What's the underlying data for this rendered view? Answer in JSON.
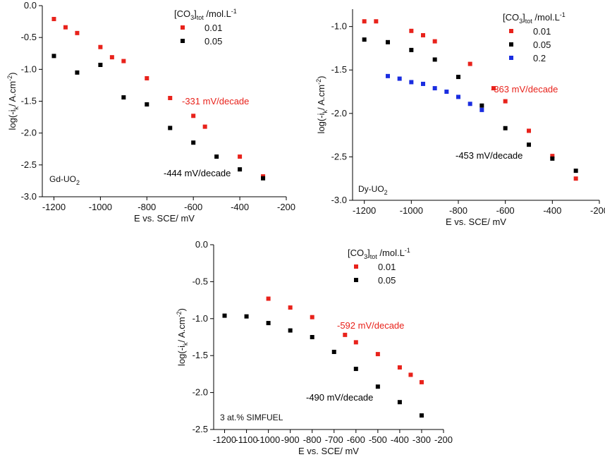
{
  "chart_data": [
    {
      "type": "scatter",
      "panel": "Gd-UO2",
      "panel_label": "Gd-UO",
      "panel_label_sub": "2",
      "xlabel": "E vs. SCE/ mV",
      "ylabel": "log(-i_k/ A.cm^-2)",
      "xlim": [
        -1250,
        -200
      ],
      "ylim": [
        -3.0,
        0.0
      ],
      "xticks": [
        -1200,
        -1000,
        -800,
        -600,
        -400,
        -200
      ],
      "yticks": [
        0.0,
        -0.5,
        -1.0,
        -1.5,
        -2.0,
        -2.5,
        -3.0
      ],
      "xtick_labels": [
        "-1200",
        "-1000",
        "-800",
        "-600",
        "-400",
        "-200"
      ],
      "ytick_labels": [
        "0.0",
        "-0.5",
        "-1.0",
        "-1.5",
        "-2.0",
        "-2.5",
        "-3.0"
      ],
      "legend_title": "[CO3]tot /mol.L-1",
      "series": [
        {
          "name": "0.01",
          "color": "#e8221b",
          "x": [
            -1200,
            -1150,
            -1100,
            -1000,
            -950,
            -900,
            -800,
            -700,
            -600,
            -550,
            -400,
            -300
          ],
          "y": [
            -0.21,
            -0.34,
            -0.43,
            -0.65,
            -0.81,
            -0.87,
            -1.14,
            -1.45,
            -1.73,
            -1.9,
            -2.37,
            -2.68
          ]
        },
        {
          "name": "0.05",
          "color": "#000000",
          "x": [
            -1200,
            -1100,
            -1000,
            -900,
            -800,
            -700,
            -600,
            -500,
            -400,
            -300
          ],
          "y": [
            -0.79,
            -1.05,
            -0.93,
            -1.44,
            -1.55,
            -1.92,
            -2.15,
            -2.37,
            -2.57,
            -2.71
          ]
        }
      ],
      "annotations": [
        {
          "text": "-331 mV/decade",
          "color": "#e8221b"
        },
        {
          "text": "-444 mV/decade",
          "color": "#000000"
        }
      ]
    },
    {
      "type": "scatter",
      "panel": "Dy-UO2",
      "panel_label": "Dy-UO",
      "panel_label_sub": "2",
      "xlabel": "E vs. SCE/ mV",
      "ylabel": "log(-i_k/ A.cm^-2)",
      "xlim": [
        -1250,
        -200
      ],
      "ylim": [
        -3.0,
        -0.8
      ],
      "xticks": [
        -1200,
        -1000,
        -800,
        -600,
        -400,
        -200
      ],
      "yticks": [
        -1.0,
        -1.5,
        -2.0,
        -2.5,
        -3.0
      ],
      "xtick_labels": [
        "-1200",
        "-1000",
        "-800",
        "-600",
        "-400",
        "-200"
      ],
      "ytick_labels": [
        "-1.0",
        "-1.5",
        "-2.0",
        "-2.5",
        "-3.0"
      ],
      "legend_title": "[CO3]tot /mol.L-1",
      "series": [
        {
          "name": "0.01",
          "color": "#e8221b",
          "x": [
            -1200,
            -1150,
            -1000,
            -950,
            -900,
            -750,
            -650,
            -600,
            -500,
            -400,
            -300
          ],
          "y": [
            -0.94,
            -0.94,
            -1.05,
            -1.1,
            -1.17,
            -1.43,
            -1.71,
            -1.86,
            -2.2,
            -2.49,
            -2.75
          ]
        },
        {
          "name": "0.05",
          "color": "#000000",
          "x": [
            -1200,
            -1100,
            -1000,
            -900,
            -800,
            -700,
            -600,
            -500,
            -400,
            -300
          ],
          "y": [
            -1.15,
            -1.18,
            -1.27,
            -1.38,
            -1.58,
            -1.91,
            -2.17,
            -2.36,
            -2.52,
            -2.66
          ]
        },
        {
          "name": "0.2",
          "color": "#1a2de0",
          "x": [
            -1100,
            -1050,
            -1000,
            -950,
            -900,
            -850,
            -800,
            -750,
            -700
          ],
          "y": [
            -1.57,
            -1.6,
            -1.64,
            -1.66,
            -1.71,
            -1.75,
            -1.81,
            -1.89,
            -1.96
          ]
        }
      ],
      "annotations": [
        {
          "text": "-363 mV/decade",
          "color": "#e8221b"
        },
        {
          "text": "-453 mV/decade",
          "color": "#000000"
        }
      ]
    },
    {
      "type": "scatter",
      "panel": "3 at.% SIMFUEL",
      "panel_label": "3 at.% SIMFUEL",
      "panel_label_sub": "",
      "xlabel": "E vs. SCE/ mV",
      "ylabel": "log(-i_k/ A.cm^-2)",
      "xlim": [
        -1250,
        -200
      ],
      "ylim": [
        -2.5,
        0.0
      ],
      "xticks": [
        -1200,
        -1100,
        -1000,
        -900,
        -800,
        -700,
        -600,
        -500,
        -400,
        -300,
        -200
      ],
      "yticks": [
        0.0,
        -0.5,
        -1.0,
        -1.5,
        -2.0,
        -2.5
      ],
      "xtick_labels": [
        "-1200",
        "-1100",
        "-1000",
        "-900",
        "-800",
        "-700",
        "-600",
        "-500",
        "-400",
        "-300",
        "-200"
      ],
      "ytick_labels": [
        "0.0",
        "-0.5",
        "-1.0",
        "-1.5",
        "-2.0",
        "-2.5"
      ],
      "legend_title": "[CO3]tot /mol.L-1",
      "series": [
        {
          "name": "0.01",
          "color": "#e8221b",
          "x": [
            -1000,
            -900,
            -800,
            -650,
            -600,
            -500,
            -400,
            -350,
            -300
          ],
          "y": [
            -0.73,
            -0.85,
            -0.98,
            -1.22,
            -1.32,
            -1.48,
            -1.66,
            -1.76,
            -1.86
          ]
        },
        {
          "name": "0.05",
          "color": "#000000",
          "x": [
            -1200,
            -1100,
            -1000,
            -900,
            -800,
            -700,
            -600,
            -500,
            -400,
            -300
          ],
          "y": [
            -0.96,
            -0.97,
            -1.06,
            -1.16,
            -1.25,
            -1.45,
            -1.68,
            -1.92,
            -2.13,
            -2.31
          ]
        }
      ],
      "annotations": [
        {
          "text": "-592 mV/decade",
          "color": "#e8221b"
        },
        {
          "text": "-490 mV/decade",
          "color": "#000000"
        }
      ]
    }
  ]
}
